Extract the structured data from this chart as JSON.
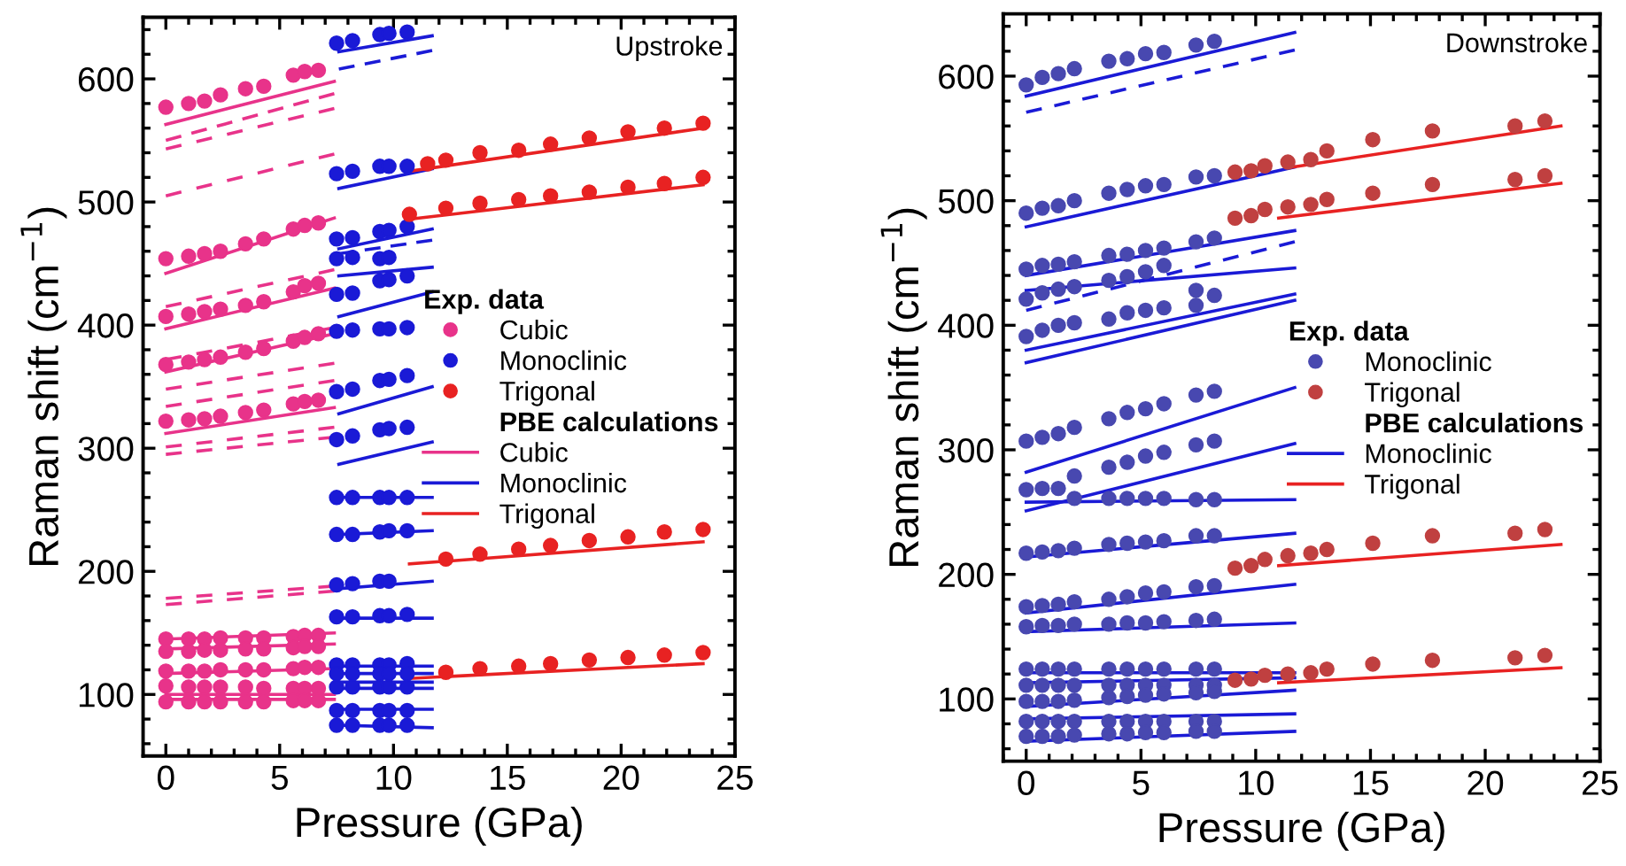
{
  "chart_data": [
    {
      "type": "scatter",
      "xlabel": "Pressure (GPa)",
      "ylabel": "Raman shift (cm$^{−1}$)",
      "xlim": [
        -1,
        25
      ],
      "ylim": [
        50,
        650
      ],
      "xticks": [
        0,
        5,
        10,
        15,
        20,
        25
      ],
      "yticks": [
        100,
        200,
        300,
        400,
        500,
        600
      ],
      "legend": "right",
      "legend_title": "Exp. data",
      "annotations": [
        "Upstroke",
        "PBE calculations"
      ],
      "series": [
        {
          "name": "Cubic",
          "marker": "circle",
          "color": "#e8338a",
          "x": [
            0,
            1.0,
            1.7,
            2.4,
            3.5,
            4.3,
            5.6,
            6.1,
            6.7,
            0,
            1.0,
            1.7,
            2.4,
            3.5,
            4.3,
            5.6,
            6.1,
            6.7,
            0,
            1.0,
            1.7,
            2.4,
            3.5,
            4.3,
            5.6,
            6.1,
            6.7,
            0,
            1.0,
            1.7,
            2.4,
            3.5,
            4.3,
            5.6,
            6.1,
            6.7,
            0,
            1.0,
            1.7,
            2.4,
            3.5,
            4.3,
            5.6,
            6.1,
            6.7,
            0,
            1.0,
            1.7,
            2.4,
            3.5,
            4.3,
            5.6,
            6.1,
            6.7,
            0,
            1.0,
            1.7,
            2.4,
            3.5,
            4.3,
            5.6,
            6.1,
            6.7,
            0,
            1.0,
            1.7,
            2.4,
            3.5,
            4.3,
            5.6,
            6.1,
            6.7,
            0,
            1.0,
            1.7,
            2.4,
            3.5,
            4.3,
            5.6,
            6.1,
            6.7,
            0,
            1.0,
            1.7,
            2.4,
            3.5,
            4.3,
            5.6,
            6.1,
            6.7
          ],
          "values": [
            577,
            580,
            582,
            587,
            592,
            594,
            603,
            606,
            607,
            454,
            456,
            458,
            460,
            466,
            470,
            478,
            481,
            483,
            407,
            409,
            411,
            413,
            416,
            419,
            427,
            432,
            434,
            368,
            370,
            372,
            374,
            378,
            381,
            387,
            390,
            393,
            322,
            323,
            324,
            326,
            329,
            331,
            336,
            338,
            339,
            145,
            145,
            145,
            146,
            146,
            146,
            147,
            148,
            148,
            135,
            135,
            136,
            136,
            137,
            137,
            138,
            139,
            139,
            119,
            119,
            119,
            120,
            120,
            120,
            121,
            122,
            122,
            107,
            106,
            106,
            106,
            106,
            105,
            105,
            105,
            105,
            94,
            94,
            94,
            94,
            94,
            94,
            95,
            95,
            95
          ]
        },
        {
          "name": "Monoclinic",
          "marker": "circle",
          "color": "#1a1ad6",
          "x": [
            7.5,
            8.2,
            9.4,
            9.8,
            10.6,
            7.5,
            8.2,
            9.4,
            9.8,
            10.6,
            7.5,
            8.2,
            9.4,
            9.8,
            10.6,
            7.5,
            8.2,
            9.4,
            9.8,
            7.5,
            8.2,
            9.4,
            9.8,
            10.6,
            7.5,
            8.2,
            9.4,
            9.8,
            10.6,
            7.5,
            8.2,
            9.4,
            9.8,
            10.6,
            7.5,
            8.2,
            9.4,
            9.8,
            10.6,
            7.5,
            8.2,
            9.4,
            9.8,
            10.6,
            7.5,
            8.2,
            9.4,
            9.8,
            10.6,
            7.5,
            8.2,
            9.4,
            9.8,
            7.5,
            8.2,
            9.4,
            9.8,
            10.6,
            7.5,
            8.2,
            9.4,
            9.8,
            10.6,
            7.5,
            8.2,
            9.4,
            9.8,
            10.6,
            7.5,
            8.2,
            9.4,
            9.8,
            10.6,
            7.5,
            8.2,
            9.4,
            9.8,
            10.6,
            7.5,
            8.2,
            9.4,
            9.8,
            10.6
          ],
          "values": [
            629,
            631,
            636,
            637,
            638,
            523,
            525,
            529,
            529,
            529,
            470,
            471,
            476,
            477,
            480,
            454,
            455,
            454,
            455,
            425,
            426,
            436,
            437,
            440,
            395,
            396,
            397,
            397,
            398,
            346,
            348,
            355,
            356,
            359,
            307,
            310,
            315,
            316,
            317,
            260,
            260,
            260,
            260,
            260,
            230,
            230,
            232,
            233,
            233,
            189,
            190,
            192,
            192,
            163,
            163,
            164,
            164,
            165,
            124,
            124,
            124,
            124,
            125,
            117,
            117,
            117,
            117,
            117,
            106,
            106,
            106,
            106,
            106,
            87,
            87,
            87,
            87,
            87,
            75,
            75,
            75,
            75,
            75
          ]
        },
        {
          "name": "Trigonal",
          "marker": "circle",
          "color": "#e82222",
          "x": [
            11.5,
            12.3,
            13.8,
            15.5,
            16.9,
            18.6,
            20.3,
            21.9,
            23.6,
            10.7,
            12.3,
            13.8,
            15.5,
            16.9,
            18.6,
            20.3,
            21.9,
            23.6,
            12.3,
            13.8,
            15.5,
            16.9,
            18.6,
            20.3,
            21.9,
            23.6,
            12.3,
            13.8,
            15.5,
            16.9,
            18.6,
            20.3,
            21.9,
            23.6
          ],
          "values": [
            531,
            534,
            540,
            542,
            547,
            552,
            557,
            560,
            564,
            490,
            495,
            499,
            502,
            505,
            508,
            512,
            515,
            520,
            210,
            214,
            218,
            221,
            225,
            228,
            232,
            234,
            118,
            121,
            123,
            125,
            128,
            130,
            132,
            134
          ]
        },
        {
          "name": "Cubic",
          "type": "line",
          "line_style": "solid",
          "color": "#e8338a",
          "x": [
            0,
            7.4
          ],
          "values": [
            563,
            598
          ]
        },
        {
          "type": "line",
          "line_style": "solid",
          "color": "#e8338a",
          "x": [
            0,
            7.4
          ],
          "values": [
            442,
            487
          ]
        },
        {
          "type": "line",
          "line_style": "solid",
          "color": "#e8338a",
          "x": [
            0,
            7.4
          ],
          "values": [
            397,
            430
          ]
        },
        {
          "type": "line",
          "line_style": "solid",
          "color": "#e8338a",
          "x": [
            0,
            7.4
          ],
          "values": [
            362,
            393
          ]
        },
        {
          "type": "line",
          "line_style": "solid",
          "color": "#e8338a",
          "x": [
            0,
            7.4
          ],
          "values": [
            312,
            333
          ]
        },
        {
          "type": "line",
          "line_style": "solid",
          "color": "#e8338a",
          "x": [
            0,
            7.4
          ],
          "values": [
            145,
            150
          ]
        },
        {
          "type": "line",
          "line_style": "solid",
          "color": "#e8338a",
          "x": [
            0,
            7.4
          ],
          "values": [
            137,
            141
          ]
        },
        {
          "type": "line",
          "line_style": "solid",
          "color": "#e8338a",
          "x": [
            0,
            7.4
          ],
          "values": [
            117,
            121
          ]
        },
        {
          "type": "line",
          "line_style": "solid",
          "color": "#e8338a",
          "x": [
            0,
            7.4
          ],
          "values": [
            100,
            100
          ]
        },
        {
          "type": "line",
          "line_style": "solid",
          "color": "#e8338a",
          "x": [
            0,
            7.4
          ],
          "values": [
            96,
            96
          ]
        },
        {
          "name": "Monoclinic",
          "type": "line",
          "line_style": "solid",
          "color": "#1a1ad6",
          "x": [
            7.6,
            11.7
          ],
          "values": [
            622,
            635
          ]
        },
        {
          "type": "line",
          "line_style": "solid",
          "color": "#1a1ad6",
          "x": [
            7.6,
            11.7
          ],
          "values": [
            511,
            527
          ]
        },
        {
          "type": "line",
          "line_style": "solid",
          "color": "#1a1ad6",
          "x": [
            7.6,
            11.7
          ],
          "values": [
            462,
            478
          ]
        },
        {
          "type": "line",
          "line_style": "solid",
          "color": "#1a1ad6",
          "x": [
            7.6,
            11.7
          ],
          "values": [
            440,
            447
          ]
        },
        {
          "type": "line",
          "line_style": "solid",
          "color": "#1a1ad6",
          "x": [
            7.6,
            11.7
          ],
          "values": [
            407,
            427
          ]
        },
        {
          "type": "line",
          "line_style": "solid",
          "color": "#1a1ad6",
          "x": [
            7.6,
            11.7
          ],
          "values": [
            328,
            350
          ]
        },
        {
          "type": "line",
          "line_style": "solid",
          "color": "#1a1ad6",
          "x": [
            7.6,
            11.7
          ],
          "values": [
            287,
            305
          ]
        },
        {
          "type": "line",
          "line_style": "solid",
          "color": "#1a1ad6",
          "x": [
            7.6,
            11.7
          ],
          "values": [
            260,
            260
          ]
        },
        {
          "type": "line",
          "line_style": "solid",
          "color": "#1a1ad6",
          "x": [
            7.6,
            11.7
          ],
          "values": [
            230,
            233
          ]
        },
        {
          "type": "line",
          "line_style": "solid",
          "color": "#1a1ad6",
          "x": [
            7.6,
            11.7
          ],
          "values": [
            186,
            192
          ]
        },
        {
          "type": "line",
          "line_style": "solid",
          "color": "#1a1ad6",
          "x": [
            7.6,
            11.7
          ],
          "values": [
            162,
            162
          ]
        },
        {
          "type": "line",
          "line_style": "solid",
          "color": "#1a1ad6",
          "x": [
            7.6,
            11.7
          ],
          "values": [
            123,
            123
          ]
        },
        {
          "type": "line",
          "line_style": "solid",
          "color": "#1a1ad6",
          "x": [
            7.6,
            11.7
          ],
          "values": [
            117,
            117
          ]
        },
        {
          "type": "line",
          "line_style": "solid",
          "color": "#1a1ad6",
          "x": [
            7.6,
            11.7
          ],
          "values": [
            110,
            110
          ]
        },
        {
          "type": "line",
          "line_style": "solid",
          "color": "#1a1ad6",
          "x": [
            7.6,
            11.7
          ],
          "values": [
            105,
            105
          ]
        },
        {
          "type": "line",
          "line_style": "solid",
          "color": "#1a1ad6",
          "x": [
            7.6,
            11.7
          ],
          "values": [
            88,
            88
          ]
        },
        {
          "type": "line",
          "line_style": "solid",
          "color": "#1a1ad6",
          "x": [
            7.6,
            11.7
          ],
          "values": [
            75,
            73
          ]
        },
        {
          "name": "Trigonal",
          "type": "line",
          "line_style": "solid",
          "color": "#e82222",
          "x": [
            10.7,
            23.6
          ],
          "values": [
            525,
            560
          ]
        },
        {
          "type": "line",
          "line_style": "solid",
          "color": "#e82222",
          "x": [
            10.7,
            23.6
          ],
          "values": [
            486,
            514
          ]
        },
        {
          "type": "line",
          "line_style": "solid",
          "color": "#e82222",
          "x": [
            10.7,
            23.6
          ],
          "values": [
            206,
            224
          ]
        },
        {
          "type": "line",
          "line_style": "solid",
          "color": "#e82222",
          "x": [
            10.7,
            23.6
          ],
          "values": [
            113,
            125
          ]
        },
        {
          "type": "line",
          "line_style": "dashed",
          "color": "#e8338a",
          "x": [
            0,
            7.4
          ],
          "values": [
            550,
            588
          ]
        },
        {
          "type": "line",
          "line_style": "dashed",
          "color": "#e8338a",
          "x": [
            0,
            7.4
          ],
          "values": [
            543,
            576
          ]
        },
        {
          "type": "line",
          "line_style": "dashed",
          "color": "#e8338a",
          "x": [
            0,
            7.4
          ],
          "values": [
            505,
            539
          ]
        },
        {
          "type": "line",
          "line_style": "dashed",
          "color": "#e8338a",
          "x": [
            0,
            7.4
          ],
          "values": [
            415,
            445
          ]
        },
        {
          "type": "line",
          "line_style": "dashed",
          "color": "#e8338a",
          "x": [
            0,
            7.4
          ],
          "values": [
            372,
            398
          ]
        },
        {
          "type": "line",
          "line_style": "dashed",
          "color": "#e8338a",
          "x": [
            0,
            7.4
          ],
          "values": [
            348,
            369
          ]
        },
        {
          "type": "line",
          "line_style": "dashed",
          "color": "#e8338a",
          "x": [
            0,
            7.4
          ],
          "values": [
            334,
            355
          ]
        },
        {
          "type": "line",
          "line_style": "dashed",
          "color": "#e8338a",
          "x": [
            0,
            7.4
          ],
          "values": [
            301,
            317
          ]
        },
        {
          "type": "line",
          "line_style": "dashed",
          "color": "#e8338a",
          "x": [
            0,
            7.4
          ],
          "values": [
            295,
            309
          ]
        },
        {
          "type": "line",
          "line_style": "dashed",
          "color": "#e8338a",
          "x": [
            0,
            7.4
          ],
          "values": [
            178,
            188
          ]
        },
        {
          "type": "line",
          "line_style": "dashed",
          "color": "#e8338a",
          "x": [
            0,
            7.4
          ],
          "values": [
            173,
            184
          ]
        },
        {
          "type": "line",
          "line_style": "dashed",
          "color": "#1a1ad6",
          "x": [
            7.6,
            11.7
          ],
          "values": [
            608,
            623
          ]
        },
        {
          "type": "line",
          "line_style": "dashed",
          "color": "#1a1ad6",
          "x": [
            7.6,
            11.7
          ],
          "values": [
            458,
            469
          ]
        }
      ]
    },
    {
      "type": "scatter",
      "xlabel": "Pressure (GPa)",
      "ylabel": "Raman shift (cm$^{−1}$)",
      "xlim": [
        -1,
        25
      ],
      "ylim": [
        50,
        650
      ],
      "xticks": [
        0,
        5,
        10,
        15,
        20,
        25
      ],
      "yticks": [
        100,
        200,
        300,
        400,
        500,
        600
      ],
      "legend": "right",
      "legend_title": "Exp. data",
      "annotations": [
        "Downstroke",
        "PBE calculations"
      ],
      "series": [
        {
          "name": "Monoclinic",
          "marker": "circle",
          "color": "#4848b0",
          "x": [
            0,
            0.7,
            1.4,
            2.1,
            3.6,
            4.4,
            5.2,
            6.0,
            7.4,
            8.2,
            0,
            0.7,
            1.4,
            2.1,
            3.6,
            4.4,
            5.2,
            6.0,
            7.4,
            8.2,
            0,
            0.7,
            1.4,
            2.1,
            3.6,
            4.4,
            5.2,
            6.0,
            7.4,
            8.2,
            0,
            0.7,
            1.4,
            2.1,
            3.6,
            4.4,
            5.2,
            6.0,
            7.4,
            0,
            0.7,
            1.4,
            2.1,
            3.6,
            4.4,
            5.2,
            6.0,
            7.4,
            8.2,
            0,
            0.7,
            1.4,
            2.1,
            3.6,
            4.4,
            5.2,
            6.0,
            7.4,
            8.2,
            0,
            0.7,
            1.4,
            2.1,
            3.6,
            4.4,
            5.2,
            6.0,
            7.4,
            8.2,
            2.1,
            3.6,
            4.4,
            5.2,
            6.0,
            7.4,
            8.2,
            0,
            0.7,
            1.4,
            2.1,
            3.6,
            4.4,
            5.2,
            6.0,
            7.4,
            8.2,
            0,
            0.7,
            1.4,
            2.1,
            3.6,
            4.4,
            5.2,
            6.0,
            7.4,
            8.2,
            0,
            0.7,
            1.4,
            2.1,
            3.6,
            4.4,
            5.2,
            6.0,
            7.4,
            8.2,
            0,
            0.7,
            1.4,
            2.1,
            3.6,
            4.4,
            5.2,
            6.0,
            7.4,
            8.2,
            0,
            0.7,
            1.4,
            2.1,
            3.6,
            4.4,
            5.2,
            6.0,
            7.4,
            8.2,
            0,
            0.7,
            1.4,
            2.1,
            3.6,
            4.4,
            5.2,
            6.0,
            7.4,
            8.2,
            0,
            0.7,
            1.4,
            2.1,
            3.6,
            4.4,
            5.2,
            6.0,
            7.4,
            8.2,
            0,
            0.7,
            1.4,
            2.1,
            3.6,
            4.4,
            5.2,
            6.0,
            7.4,
            8.2
          ],
          "values": [
            593,
            599,
            602,
            606,
            612,
            614,
            618,
            619,
            625,
            628,
            490,
            494,
            496,
            500,
            506,
            509,
            512,
            513,
            519,
            520,
            445,
            448,
            449,
            451,
            456,
            457,
            460,
            462,
            467,
            470,
            421,
            426,
            429,
            431,
            436,
            439,
            443,
            448,
            428,
            391,
            396,
            400,
            402,
            405,
            410,
            412,
            414,
            416,
            424,
            307,
            310,
            313,
            318,
            325,
            330,
            333,
            337,
            344,
            347,
            268,
            269,
            269,
            279,
            286,
            290,
            295,
            298,
            304,
            307,
            261,
            261,
            261,
            261,
            261,
            260,
            260,
            217,
            218,
            219,
            221,
            224,
            225,
            226,
            227,
            231,
            231,
            174,
            175,
            176,
            178,
            180,
            182,
            185,
            186,
            190,
            191,
            158,
            159,
            159,
            160,
            160,
            161,
            161,
            162,
            163,
            164,
            124,
            124,
            124,
            124,
            124,
            124,
            124,
            124,
            124,
            124,
            111,
            111,
            111,
            111,
            111,
            111,
            111,
            111,
            111,
            111,
            98,
            98,
            98,
            99,
            101,
            102,
            103,
            104,
            105,
            106,
            82,
            82,
            82,
            82,
            82,
            82,
            82,
            82,
            82,
            82,
            70,
            70,
            70,
            71,
            72,
            72,
            73,
            73,
            74,
            74
          ]
        },
        {
          "name": "Trigonal",
          "marker": "circle",
          "color": "#c04040",
          "x": [
            9.1,
            9.8,
            10.4,
            11.4,
            12.4,
            13.1,
            15.1,
            17.7,
            21.3,
            22.6,
            9.1,
            9.8,
            10.4,
            11.4,
            12.4,
            13.1,
            15.1,
            17.7,
            21.3,
            22.6,
            9.1,
            9.8,
            10.4,
            11.4,
            12.4,
            13.1,
            15.1,
            17.7,
            21.3,
            22.6,
            9.1,
            9.8,
            10.4,
            11.4,
            12.4,
            13.1,
            15.1,
            17.7,
            21.3,
            22.6
          ],
          "values": [
            523,
            524,
            528,
            531,
            533,
            540,
            549,
            556,
            560,
            564,
            486,
            488,
            493,
            495,
            497,
            501,
            506,
            513,
            517,
            520,
            205,
            207,
            212,
            215,
            217,
            220,
            225,
            231,
            233,
            236,
            115,
            116,
            119,
            120,
            121,
            124,
            128,
            131,
            133,
            135
          ]
        },
        {
          "name": "Monoclinic",
          "type": "line",
          "line_style": "solid",
          "color": "#1a1ad6",
          "x": [
            0,
            11.7
          ],
          "values": [
            584,
            635
          ]
        },
        {
          "type": "line",
          "line_style": "solid",
          "color": "#1a1ad6",
          "x": [
            0,
            11.7
          ],
          "values": [
            479,
            527
          ]
        },
        {
          "type": "line",
          "line_style": "solid",
          "color": "#1a1ad6",
          "x": [
            0,
            11.7
          ],
          "values": [
            440,
            476
          ]
        },
        {
          "type": "line",
          "line_style": "solid",
          "color": "#1a1ad6",
          "x": [
            0,
            11.7
          ],
          "values": [
            428,
            446
          ]
        },
        {
          "type": "line",
          "line_style": "solid",
          "color": "#1a1ad6",
          "x": [
            0,
            11.7
          ],
          "values": [
            380,
            425
          ]
        },
        {
          "type": "line",
          "line_style": "solid",
          "color": "#1a1ad6",
          "x": [
            0,
            11.7
          ],
          "values": [
            370,
            420
          ]
        },
        {
          "type": "line",
          "line_style": "solid",
          "color": "#1a1ad6",
          "x": [
            0,
            11.7
          ],
          "values": [
            282,
            350
          ]
        },
        {
          "type": "line",
          "line_style": "solid",
          "color": "#1a1ad6",
          "x": [
            0,
            11.7
          ],
          "values": [
            251,
            305
          ]
        },
        {
          "type": "line",
          "line_style": "solid",
          "color": "#1a1ad6",
          "x": [
            0,
            11.7
          ],
          "values": [
            258,
            260
          ]
        },
        {
          "type": "line",
          "line_style": "solid",
          "color": "#1a1ad6",
          "x": [
            0,
            11.7
          ],
          "values": [
            214,
            233
          ]
        },
        {
          "type": "line",
          "line_style": "solid",
          "color": "#1a1ad6",
          "x": [
            0,
            11.7
          ],
          "values": [
            169,
            192
          ]
        },
        {
          "type": "line",
          "line_style": "solid",
          "color": "#1a1ad6",
          "x": [
            0,
            11.7
          ],
          "values": [
            154,
            161
          ]
        },
        {
          "type": "line",
          "line_style": "solid",
          "color": "#1a1ad6",
          "x": [
            0,
            11.7
          ],
          "values": [
            121,
            121
          ]
        },
        {
          "type": "line",
          "line_style": "solid",
          "color": "#1a1ad6",
          "x": [
            0,
            11.7
          ],
          "values": [
            113,
            117
          ]
        },
        {
          "type": "line",
          "line_style": "solid",
          "color": "#1a1ad6",
          "x": [
            0,
            11.7
          ],
          "values": [
            94,
            107
          ]
        },
        {
          "type": "line",
          "line_style": "solid",
          "color": "#1a1ad6",
          "x": [
            0,
            11.7
          ],
          "values": [
            84,
            88
          ]
        },
        {
          "type": "line",
          "line_style": "solid",
          "color": "#1a1ad6",
          "x": [
            0,
            11.7
          ],
          "values": [
            66,
            74
          ]
        },
        {
          "name": "Trigonal",
          "type": "line",
          "line_style": "solid",
          "color": "#e82222",
          "x": [
            11.6,
            23.3
          ],
          "values": [
            527,
            560
          ]
        },
        {
          "type": "line",
          "line_style": "solid",
          "color": "#e82222",
          "x": [
            11.0,
            23.3
          ],
          "values": [
            486,
            514
          ]
        },
        {
          "type": "line",
          "line_style": "solid",
          "color": "#e82222",
          "x": [
            11.0,
            23.3
          ],
          "values": [
            207,
            224
          ]
        },
        {
          "type": "line",
          "line_style": "solid",
          "color": "#e82222",
          "x": [
            11.0,
            23.3
          ],
          "values": [
            113,
            125
          ]
        },
        {
          "type": "line",
          "line_style": "dashed",
          "color": "#1a1ad6",
          "x": [
            0,
            11.7
          ],
          "values": [
            571,
            621
          ]
        },
        {
          "type": "line",
          "line_style": "dashed",
          "color": "#1a1ad6",
          "x": [
            0,
            11.7
          ],
          "values": [
            412,
            467
          ]
        }
      ]
    }
  ]
}
